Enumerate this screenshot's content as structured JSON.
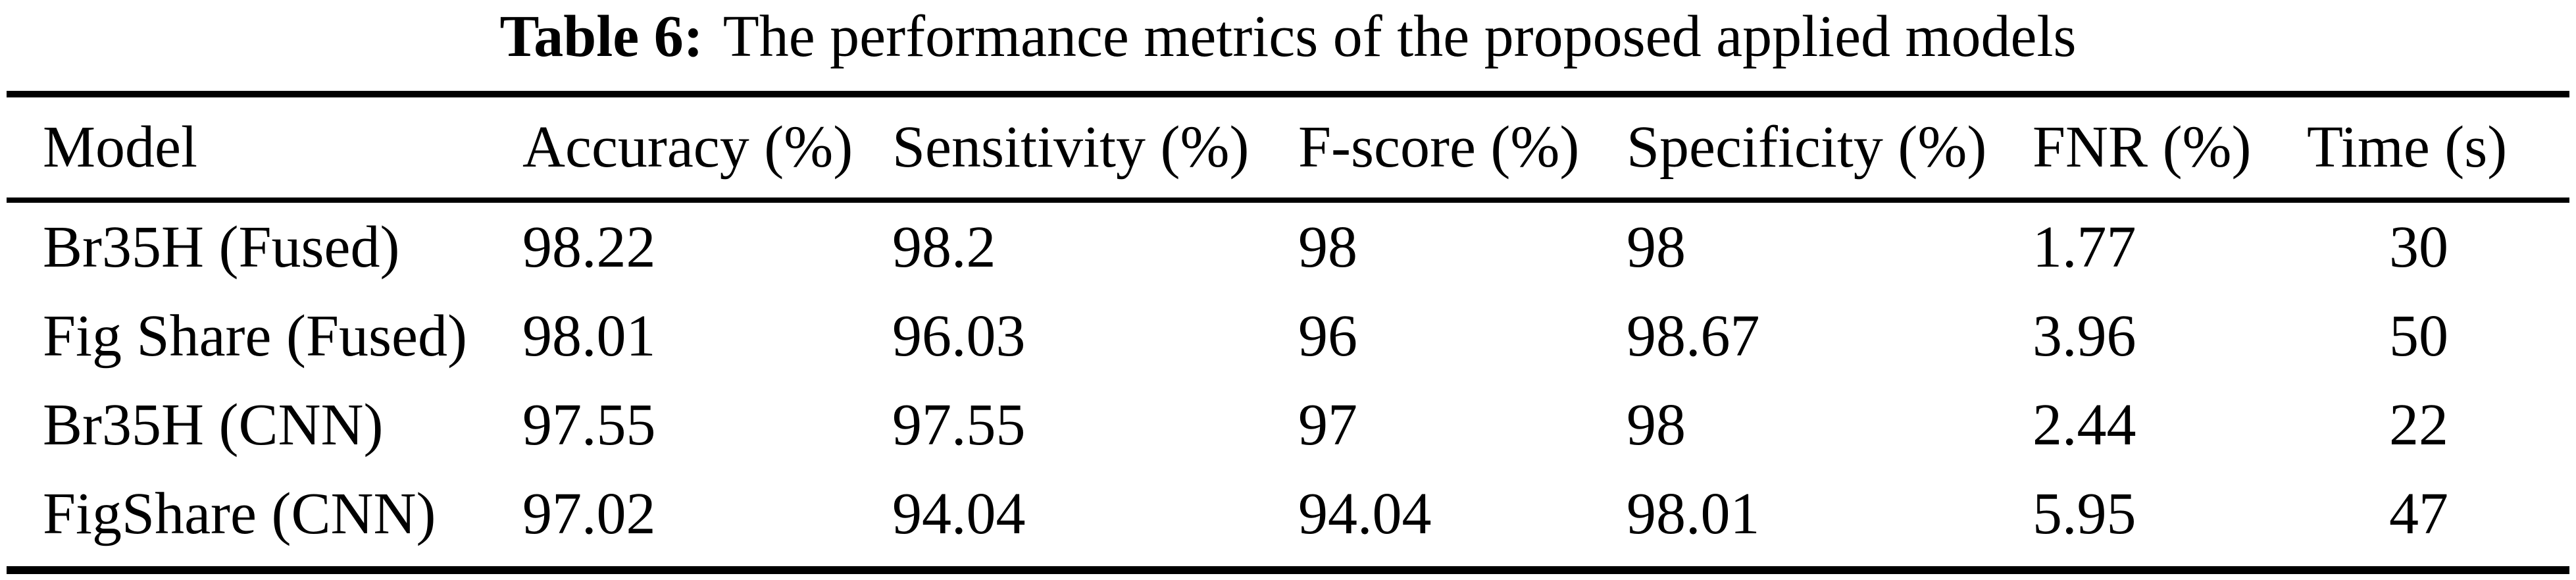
{
  "caption": {
    "label": "Table 6:",
    "text": "The performance metrics of the proposed applied models"
  },
  "table": {
    "headers": [
      "Model",
      "Accuracy (%)",
      "Sensitivity (%)",
      "F-score (%)",
      "Specificity (%)",
      "FNR (%)",
      "Time (s)"
    ],
    "rows": [
      [
        "Br35H (Fused)",
        "98.22",
        "98.2",
        "98",
        "98",
        "1.77",
        "30"
      ],
      [
        "Fig Share (Fused)",
        "98.01",
        "96.03",
        "96",
        "98.67",
        "3.96",
        "50"
      ],
      [
        "Br35H (CNN)",
        "97.55",
        "97.55",
        "97",
        "98",
        "2.44",
        "22"
      ],
      [
        "FigShare (CNN)",
        "97.02",
        "94.04",
        "94.04",
        "98.01",
        "5.95",
        "47"
      ]
    ]
  },
  "colors": {
    "text": "#000000",
    "background": "#ffffff",
    "rule": "#000000"
  },
  "chart_data": {
    "type": "table",
    "title": "Table 6: The performance metrics of the proposed applied models",
    "columns": [
      "Model",
      "Accuracy (%)",
      "Sensitivity (%)",
      "F-score (%)",
      "Specificity (%)",
      "FNR (%)",
      "Time (s)"
    ],
    "rows": [
      {
        "model": "Br35H (Fused)",
        "accuracy": 98.22,
        "sensitivity": 98.2,
        "f_score": 98,
        "specificity": 98,
        "fnr": 1.77,
        "time_s": 30
      },
      {
        "model": "Fig Share (Fused)",
        "accuracy": 98.01,
        "sensitivity": 96.03,
        "f_score": 96,
        "specificity": 98.67,
        "fnr": 3.96,
        "time_s": 50
      },
      {
        "model": "Br35H (CNN)",
        "accuracy": 97.55,
        "sensitivity": 97.55,
        "f_score": 97,
        "specificity": 98,
        "fnr": 2.44,
        "time_s": 22
      },
      {
        "model": "FigShare (CNN)",
        "accuracy": 97.02,
        "sensitivity": 94.04,
        "f_score": 94.04,
        "specificity": 98.01,
        "fnr": 5.95,
        "time_s": 47
      }
    ]
  }
}
